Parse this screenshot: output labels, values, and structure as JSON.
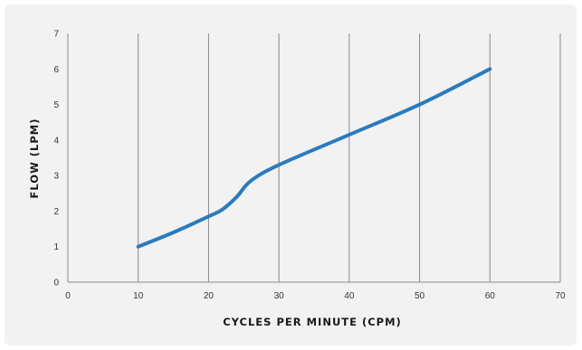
{
  "chart_data": {
    "type": "line",
    "title": "",
    "xlabel": "CYCLES PER MINUTE (CPM)",
    "ylabel": "FLOW (LPM)",
    "xlim": [
      0,
      70
    ],
    "ylim": [
      0,
      7
    ],
    "x_ticks": [
      "0",
      "10",
      "20",
      "30",
      "40",
      "50",
      "60",
      "70"
    ],
    "y_ticks": [
      "0",
      "1",
      "2",
      "3",
      "4",
      "5",
      "6",
      "7"
    ],
    "grid": "vertical",
    "series": [
      {
        "color": "#2a7bbd",
        "points": [
          [
            10,
            1.0
          ],
          [
            15,
            1.4
          ],
          [
            20,
            1.85
          ],
          [
            22,
            2.05
          ],
          [
            24,
            2.4
          ],
          [
            26,
            2.85
          ],
          [
            30,
            3.3
          ],
          [
            40,
            4.15
          ],
          [
            50,
            5.0
          ],
          [
            60,
            6.0
          ]
        ]
      }
    ]
  }
}
